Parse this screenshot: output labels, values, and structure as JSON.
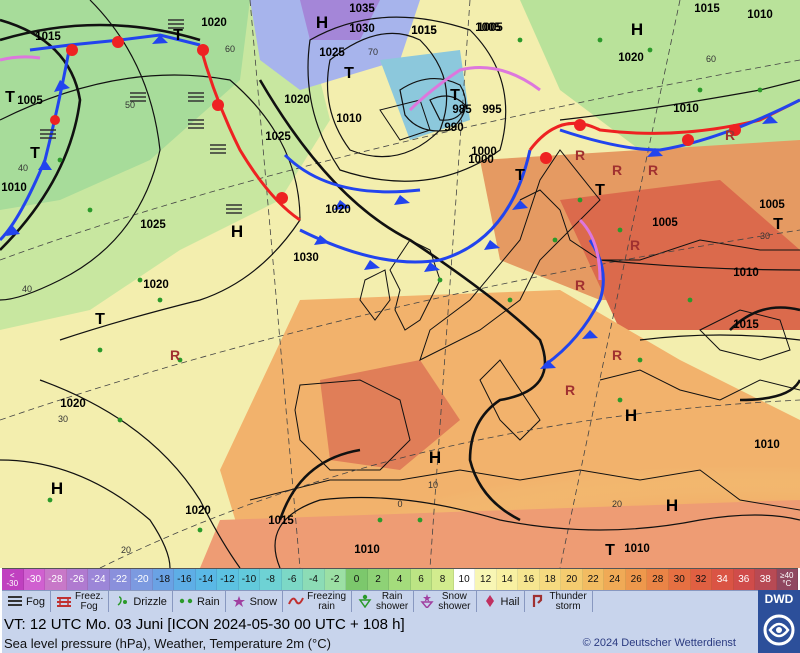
{
  "map": {
    "highs": [
      "H",
      "H",
      "H",
      "H",
      "H",
      "H",
      "H"
    ],
    "lows": [
      "T",
      "T",
      "T",
      "T",
      "T",
      "T",
      "T",
      "T",
      "T",
      "T"
    ],
    "isobars": [
      "1035",
      "1030",
      "1025",
      "1020",
      "1015",
      "1010",
      "1005",
      "1000",
      "995",
      "990",
      "985",
      "1015",
      "1005",
      "1020",
      "1010",
      "1025",
      "1020",
      "1010",
      "1000",
      "1020",
      "1025",
      "1030",
      "1020",
      "1020",
      "1010",
      "1005",
      "1010",
      "1015",
      "1010",
      "1015",
      "1010",
      "1005",
      "1015",
      "1010",
      "1020",
      "1005",
      "1015"
    ],
    "temp_contours": [
      "60",
      "50",
      "40",
      "30",
      "20",
      "0",
      "70",
      "60",
      "40",
      "30",
      "20",
      "10"
    ]
  },
  "scale": {
    "first": "<\n-30",
    "values": [
      "-30",
      "-28",
      "-26",
      "-24",
      "-22",
      "-20",
      "-18",
      "-16",
      "-14",
      "-12",
      "-10",
      "-8",
      "-6",
      "-4",
      "-2",
      "0",
      "2",
      "4",
      "6",
      "8",
      "10",
      "12",
      "14",
      "16",
      "18",
      "20",
      "22",
      "24",
      "26",
      "28",
      "30",
      "32",
      "34",
      "36",
      "38"
    ],
    "last": "≥40\n°C",
    "colors": [
      "#d060d0",
      "#c878c8",
      "#b07ad0",
      "#9c86d8",
      "#8a90dc",
      "#7c9ae0",
      "#6aa2e4",
      "#5eaee6",
      "#5ab8e6",
      "#5cc2e2",
      "#62cadc",
      "#6ed2d4",
      "#7cd8c6",
      "#8cdcb6",
      "#9ce0a4",
      "#7cc86c",
      "#8ed276",
      "#a4dc7c",
      "#bce484",
      "#d2ec8e",
      "#ffffff",
      "#f8f6b4",
      "#f8f0a2",
      "#f6e690",
      "#f6da80",
      "#f4cc70",
      "#f2bc62",
      "#f0aa56",
      "#ee984c",
      "#ea8446",
      "#e67042",
      "#e06042",
      "#da5444",
      "#d04c4a",
      "#b84a54"
    ]
  },
  "legend": [
    {
      "icon": "fog",
      "label": "Fog"
    },
    {
      "icon": "freezing-fog",
      "label": "Freez.\nFog"
    },
    {
      "icon": "drizzle",
      "label": "Drizzle"
    },
    {
      "icon": "rain",
      "label": "Rain"
    },
    {
      "icon": "snow",
      "label": "Snow"
    },
    {
      "icon": "freezing-rain",
      "label": "Freezing\nrain"
    },
    {
      "icon": "rain-shower",
      "label": "Rain\nshower"
    },
    {
      "icon": "snow-shower",
      "label": "Snow\nshower"
    },
    {
      "icon": "hail",
      "label": "Hail"
    },
    {
      "icon": "thunderstorm",
      "label": "Thunder\nstorm"
    }
  ],
  "footer": {
    "valid_time": "VT: 12 UTC Mo.   03 Juni [ICON 2024-05-30  00 UTC + 108 h]",
    "description": "Sea level pressure (hPa), Weather, Temperature 2m (°C)",
    "copyright": "© 2024 Deutscher Wetterdienst"
  },
  "logo": {
    "text": "DWD"
  },
  "colors": {
    "panel": "#c8d4ec",
    "logo": "#2c4f9a",
    "warm_front": "#ee2222",
    "cold_front": "#2244ee",
    "occlusion": "#dd77dd"
  }
}
